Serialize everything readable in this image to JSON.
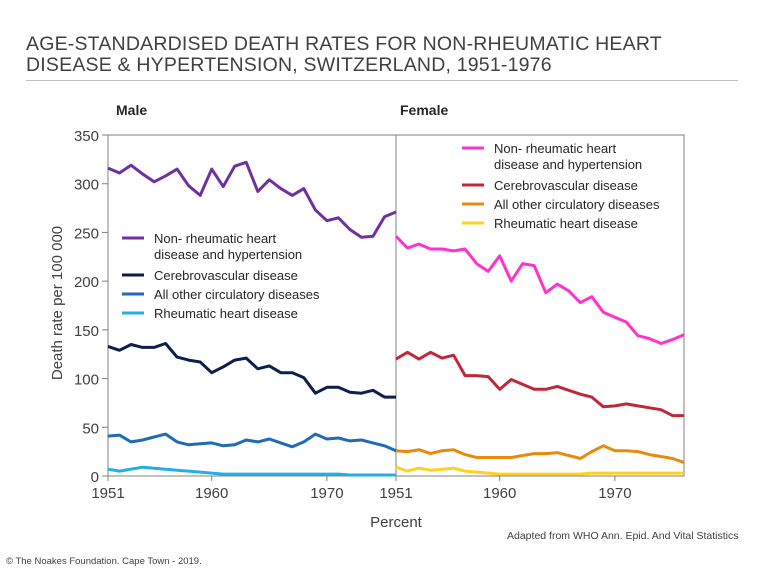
{
  "page": {
    "title_line1": "AGE-STANDARDISED DEATH RATES FOR NON-RHEUMATIC HEART",
    "title_line2": "DISEASE & HYPERTENSION, SWITZERLAND, 1951-1976",
    "source_note": "Adapted from WHO Ann. Epid. And Vital Statistics",
    "copyright": "© The Noakes Foundation. Cape Town - 2019."
  },
  "chart_data": [
    {
      "type": "line",
      "panel_title": "Male",
      "xlabel": "Percent",
      "ylabel": "Death rate per 100 000",
      "ylim": [
        0,
        350
      ],
      "yticks": [
        "0",
        "50",
        "100",
        "150",
        "200",
        "250",
        "300",
        "350"
      ],
      "xticks": [
        "1951",
        "1960",
        "1970"
      ],
      "legend": "left",
      "x": [
        1951,
        1952,
        1953,
        1954,
        1955,
        1956,
        1957,
        1958,
        1959,
        1960,
        1961,
        1962,
        1963,
        1964,
        1965,
        1966,
        1967,
        1968,
        1969,
        1970,
        1971,
        1972,
        1973,
        1974,
        1975,
        1976
      ],
      "series": [
        {
          "name": "Non- rheumatic heart disease and hypertension",
          "color": "#7030a0",
          "values": [
            316,
            311,
            319,
            310,
            302,
            308,
            315,
            298,
            288,
            315,
            297,
            318,
            322,
            292,
            304,
            295,
            288,
            295,
            273,
            262,
            265,
            253,
            245,
            246,
            266,
            271
          ]
        },
        {
          "name": "Cerebrovascular disease",
          "color": "#0d1f4f",
          "values": [
            133,
            129,
            135,
            132,
            132,
            136,
            122,
            119,
            117,
            106,
            112,
            119,
            121,
            110,
            113,
            106,
            106,
            101,
            85,
            91,
            91,
            86,
            85,
            88,
            81,
            81
          ]
        },
        {
          "name": "All other circulatory diseases",
          "color": "#1f6bb5",
          "values": [
            41,
            42,
            35,
            37,
            40,
            43,
            35,
            32,
            33,
            34,
            31,
            32,
            37,
            35,
            38,
            34,
            30,
            35,
            43,
            38,
            39,
            36,
            37,
            34,
            31,
            26
          ]
        },
        {
          "name": "Rheumatic heart disease",
          "color": "#22aee6",
          "values": [
            7,
            5,
            7,
            9,
            8,
            7,
            6,
            5,
            4,
            3,
            2,
            2,
            2,
            2,
            2,
            2,
            2,
            2,
            2,
            2,
            2,
            1,
            1,
            1,
            1,
            1
          ]
        }
      ]
    },
    {
      "type": "line",
      "panel_title": "Female",
      "ylim": [
        0,
        350
      ],
      "xticks": [
        "1951",
        "1960",
        "1970"
      ],
      "legend": "top-right",
      "x": [
        1951,
        1952,
        1953,
        1954,
        1955,
        1956,
        1957,
        1958,
        1959,
        1960,
        1961,
        1962,
        1963,
        1964,
        1965,
        1966,
        1967,
        1968,
        1969,
        1970,
        1971,
        1972,
        1973,
        1974,
        1975,
        1976
      ],
      "series": [
        {
          "name": "Non- rheumatic heart disease and hypertension",
          "color": "#ff33cc",
          "values": [
            246,
            234,
            238,
            233,
            233,
            231,
            233,
            218,
            210,
            226,
            200,
            218,
            216,
            188,
            197,
            190,
            178,
            184,
            168,
            163,
            158,
            144,
            141,
            136,
            140,
            145
          ]
        },
        {
          "name": "Cerebrovascular disease",
          "color": "#c0283a",
          "values": [
            120,
            127,
            120,
            127,
            121,
            124,
            103,
            103,
            102,
            89,
            99,
            94,
            89,
            89,
            92,
            88,
            84,
            81,
            71,
            72,
            74,
            72,
            70,
            68,
            62,
            62
          ]
        },
        {
          "name": "All other circulatory diseases",
          "color": "#e88a0c",
          "values": [
            26,
            25,
            27,
            23,
            26,
            27,
            22,
            19,
            19,
            19,
            19,
            21,
            23,
            23,
            24,
            21,
            18,
            25,
            31,
            26,
            26,
            25,
            22,
            20,
            18,
            14
          ]
        },
        {
          "name": "Rheumatic heart disease",
          "color": "#ffd21f",
          "values": [
            9,
            5,
            8,
            6,
            7,
            8,
            5,
            4,
            3,
            2,
            2,
            2,
            2,
            2,
            2,
            2,
            2,
            3,
            3,
            3,
            3,
            3,
            3,
            3,
            3,
            3
          ]
        }
      ]
    }
  ]
}
